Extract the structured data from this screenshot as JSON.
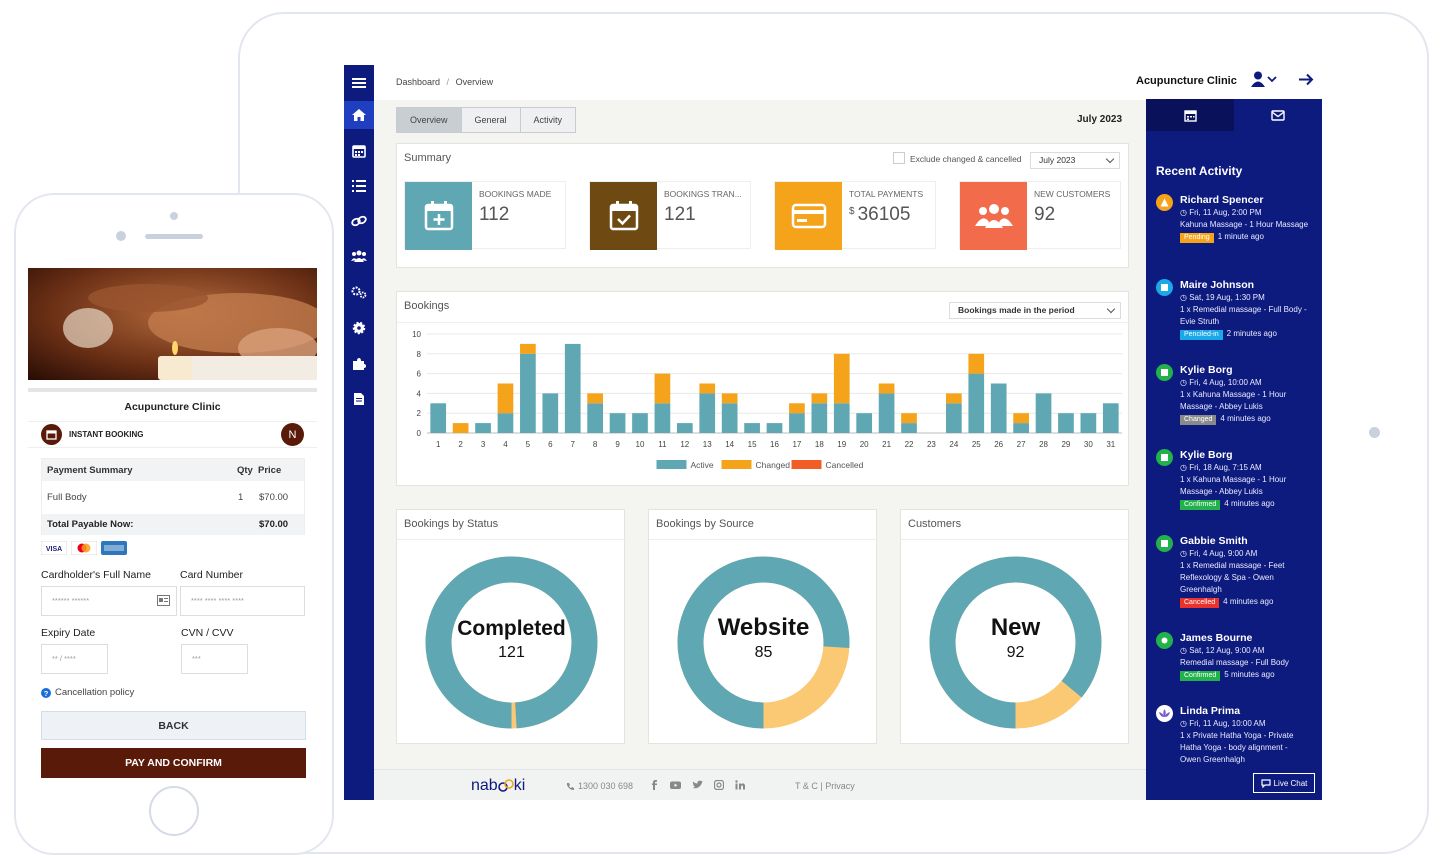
{
  "breadcrumb": {
    "root": "Dashboard",
    "sep": "/",
    "current": "Overview"
  },
  "header": {
    "clinic_name": "Acupuncture Clinic"
  },
  "tabs": [
    {
      "label": "Overview"
    },
    {
      "label": "General"
    },
    {
      "label": "Activity"
    }
  ],
  "period": {
    "label": "July 2023",
    "select": "July 2023",
    "exclude_label": "Exclude changed & cancelled"
  },
  "summary": {
    "title": "Summary",
    "stats": [
      {
        "label": "BOOKINGS MADE",
        "value": "112",
        "color": "#5ea7b3",
        "icon": "calendar-plus-icon"
      },
      {
        "label": "BOOKINGS TRAN...",
        "value": "121",
        "color": "#6e4a12",
        "icon": "calendar-check-icon"
      },
      {
        "label": "TOTAL PAYMENTS",
        "currency": "$",
        "value": "36105",
        "color": "#f5a31a",
        "icon": "credit-card-icon"
      },
      {
        "label": "NEW CUSTOMERS",
        "value": "92",
        "color": "#f26b4a",
        "icon": "users-icon"
      }
    ]
  },
  "bookings": {
    "title": "Bookings",
    "select": "Bookings made in the period"
  },
  "chart_data": {
    "type": "bar",
    "stacked": true,
    "categories": [
      "1",
      "2",
      "3",
      "4",
      "5",
      "6",
      "7",
      "8",
      "9",
      "10",
      "11",
      "12",
      "13",
      "14",
      "15",
      "16",
      "17",
      "18",
      "19",
      "20",
      "21",
      "22",
      "23",
      "24",
      "25",
      "26",
      "27",
      "28",
      "29",
      "30",
      "31"
    ],
    "series": [
      {
        "name": "Active",
        "color": "#5ea7b3",
        "values": [
          3,
          0,
          1,
          2,
          8,
          4,
          9,
          3,
          2,
          2,
          3,
          1,
          4,
          3,
          1,
          1,
          2,
          3,
          3,
          2,
          4,
          1,
          0,
          3,
          6,
          5,
          1,
          4,
          2,
          2,
          3
        ]
      },
      {
        "name": "Changed",
        "color": "#f5a31a",
        "values": [
          0,
          1,
          0,
          3,
          1,
          0,
          0,
          1,
          0,
          0,
          3,
          0,
          1,
          1,
          0,
          0,
          1,
          1,
          5,
          0,
          1,
          1,
          0,
          1,
          2,
          0,
          1,
          0,
          0,
          0,
          0
        ]
      },
      {
        "name": "Cancelled",
        "color": "#f25c25",
        "values": [
          0,
          0,
          0,
          0,
          0,
          0,
          0,
          0,
          0,
          0,
          0,
          0,
          0,
          0,
          0,
          0,
          0,
          0,
          0,
          0,
          0,
          0,
          0,
          0,
          0,
          0,
          0,
          0,
          0,
          0,
          0
        ]
      }
    ],
    "y_ticks": [
      "0",
      "2",
      "4",
      "6",
      "8",
      "10"
    ],
    "ylim": [
      0,
      10
    ],
    "grid": true,
    "legend": "bottom"
  },
  "donuts": [
    {
      "title": "Bookings by Status",
      "center_label": "Completed",
      "center_value": "121",
      "primary": 0.99,
      "secondary": 0.01
    },
    {
      "title": "Bookings by Source",
      "center_label": "Website",
      "center_value": "85",
      "primary": 0.76,
      "secondary": 0.24
    },
    {
      "title": "Customers",
      "center_label": "New",
      "center_value": "92",
      "primary": 0.86,
      "secondary": 0.14
    }
  ],
  "donut_colors": {
    "primary": "#5ea7b3",
    "secondary": "#fbc874"
  },
  "recent": {
    "title": "Recent Activity",
    "items": [
      {
        "name": "Richard Spencer",
        "time": "Fri, 11 Aug, 2:00 PM",
        "desc": "Kahuna Massage - 1 Hour Massage",
        "status": "Pending",
        "status_color": "#f5a31a",
        "ago": "1 minute ago",
        "dot_color": "#f5a31a"
      },
      {
        "name": "Maire Johnson",
        "time": "Sat, 19 Aug, 1:30 PM",
        "desc": "1 x Remedial massage - Full Body - Evie Struth",
        "status": "Penciled-in",
        "status_color": "#1aa8e8",
        "ago": "2 minutes ago",
        "dot_color": "#1aa8e8"
      },
      {
        "name": "Kylie Borg",
        "time": "Fri, 4 Aug, 10:00 AM",
        "desc": "1 x Kahuna Massage - 1 Hour Massage - Abbey Lukis",
        "status": "Changed",
        "status_color": "#8a8a8a",
        "ago": "4 minutes ago",
        "dot_color": "#22b24c"
      },
      {
        "name": "Kylie Borg",
        "time": "Fri, 18 Aug, 7:15 AM",
        "desc": "1 x Kahuna Massage - 1 Hour Massage - Abbey Lukis",
        "status": "Confirmed",
        "status_color": "#22b24c",
        "ago": "4 minutes ago",
        "dot_color": "#22b24c"
      },
      {
        "name": "Gabbie Smith",
        "time": "Fri, 4 Aug, 9:00 AM",
        "desc": "1 x Remedial massage - Feet Reflexology & Spa - Owen Greenhalgh",
        "status": "Cancelled",
        "status_color": "#e8322b",
        "ago": "4 minutes ago",
        "dot_color": "#22b24c"
      },
      {
        "name": "James Bourne",
        "time": "Sat, 12 Aug, 9:00 AM",
        "desc": "Remedial massage - Full Body",
        "status": "Confirmed",
        "status_color": "#22b24c",
        "ago": "5 minutes ago",
        "dot_color": "#22b24c"
      },
      {
        "name": "Linda Prima",
        "time": "Fri, 11 Aug, 10:00 AM",
        "desc": "1 x Private Hatha Yoga - Private Hatha Yoga - body alignment - Owen Greenhalgh",
        "status": "",
        "status_color": "",
        "ago": "",
        "dot_color": "#7a5cc8"
      }
    ]
  },
  "footer": {
    "brand": "nab",
    "brand_rest": "ki",
    "phone": "1300 030 698",
    "terms": "T & C",
    "sep": "|",
    "privacy": "Privacy",
    "livechat": "Live Chat"
  },
  "phone": {
    "clinic_name": "Acupuncture Clinic",
    "instant": "INSTANT BOOKING",
    "avatar": "N",
    "summary_header": "Payment Summary",
    "qty_header": "Qty",
    "price_header": "Price",
    "item": "Full Body",
    "item_qty": "1",
    "item_price": "$70.00",
    "total_label": "Total Payable Now:",
    "total_value": "$70.00",
    "cardholder_label": "Cardholder's Full Name",
    "cardholder_placeholder": "****** ******",
    "card_label": "Card Number",
    "card_placeholder": "**** **** **** ****",
    "expiry_label": "Expiry Date",
    "expiry_placeholder": "** / ****",
    "cvv_label": "CVN / CVV",
    "cvv_placeholder": "***",
    "policy": "Cancellation policy",
    "back": "BACK",
    "pay": "PAY AND CONFIRM"
  }
}
